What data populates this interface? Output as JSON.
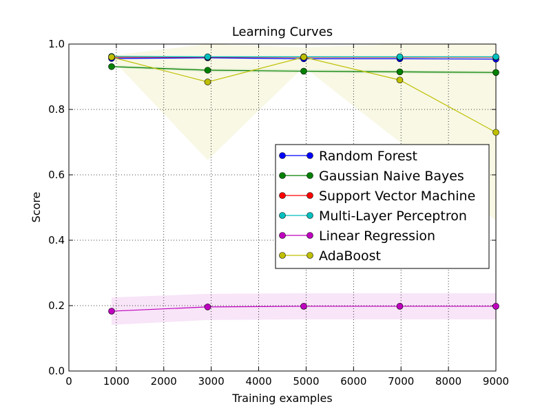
{
  "chart_data": {
    "type": "line",
    "title": "Learning Curves",
    "xlabel": "Training examples",
    "ylabel": "Score",
    "xlim": [
      0,
      9000
    ],
    "ylim": [
      0.0,
      1.0
    ],
    "xticks": [
      0,
      1000,
      2000,
      3000,
      4000,
      5000,
      6000,
      7000,
      8000,
      9000
    ],
    "xtick_labels": [
      "0",
      "1000",
      "2000",
      "3000",
      "4000",
      "5000",
      "6000",
      "7000",
      "8000",
      "9000"
    ],
    "yticks": [
      0.0,
      0.2,
      0.4,
      0.6,
      0.8,
      1.0
    ],
    "ytick_labels": [
      "0.0",
      "0.2",
      "0.4",
      "0.6",
      "0.8",
      "1.0"
    ],
    "grid": true,
    "legend_position": "center-right",
    "x": [
      900,
      2925,
      4950,
      6975,
      9000
    ],
    "series": [
      {
        "name": "Random Forest",
        "color": "#0000ff",
        "values": [
          0.956,
          0.958,
          0.955,
          0.955,
          0.954
        ],
        "band": [
          [
            0.952,
            0.96
          ],
          [
            0.955,
            0.961
          ],
          [
            0.953,
            0.957
          ],
          [
            0.953,
            0.957
          ],
          [
            0.952,
            0.956
          ]
        ]
      },
      {
        "name": "Gaussian Naive Bayes",
        "color": "#008000",
        "values": [
          0.931,
          0.92,
          0.917,
          0.915,
          0.913
        ],
        "band": [
          [
            0.927,
            0.935
          ],
          [
            0.915,
            0.925
          ],
          [
            0.912,
            0.922
          ],
          [
            0.91,
            0.92
          ],
          [
            0.908,
            0.918
          ]
        ]
      },
      {
        "name": "Support Vector Machine",
        "color": "#ff0000",
        "values": [
          0.96,
          0.96,
          0.96,
          0.96,
          0.96
        ],
        "band": null
      },
      {
        "name": "Multi-Layer Perceptron",
        "color": "#00bfbf",
        "values": [
          0.962,
          0.961,
          0.961,
          0.961,
          0.961
        ],
        "band": [
          [
            0.959,
            0.965
          ],
          [
            0.958,
            0.964
          ],
          [
            0.958,
            0.964
          ],
          [
            0.958,
            0.964
          ],
          [
            0.958,
            0.964
          ]
        ]
      },
      {
        "name": "Linear Regression",
        "color": "#bf00bf",
        "values": [
          0.183,
          0.196,
          0.198,
          0.198,
          0.198
        ],
        "band": [
          [
            0.141,
            0.225
          ],
          [
            0.156,
            0.236
          ],
          [
            0.158,
            0.238
          ],
          [
            0.158,
            0.238
          ],
          [
            0.158,
            0.238
          ]
        ]
      },
      {
        "name": "AdaBoost",
        "color": "#bfbf00",
        "values": [
          0.96,
          0.884,
          0.96,
          0.89,
          0.73
        ],
        "band": [
          [
            0.955,
            0.965
          ],
          [
            0.645,
            1.0
          ],
          [
            0.93,
            0.99
          ],
          [
            0.7,
            1.0
          ],
          [
            0.46,
            1.0
          ]
        ]
      }
    ]
  }
}
